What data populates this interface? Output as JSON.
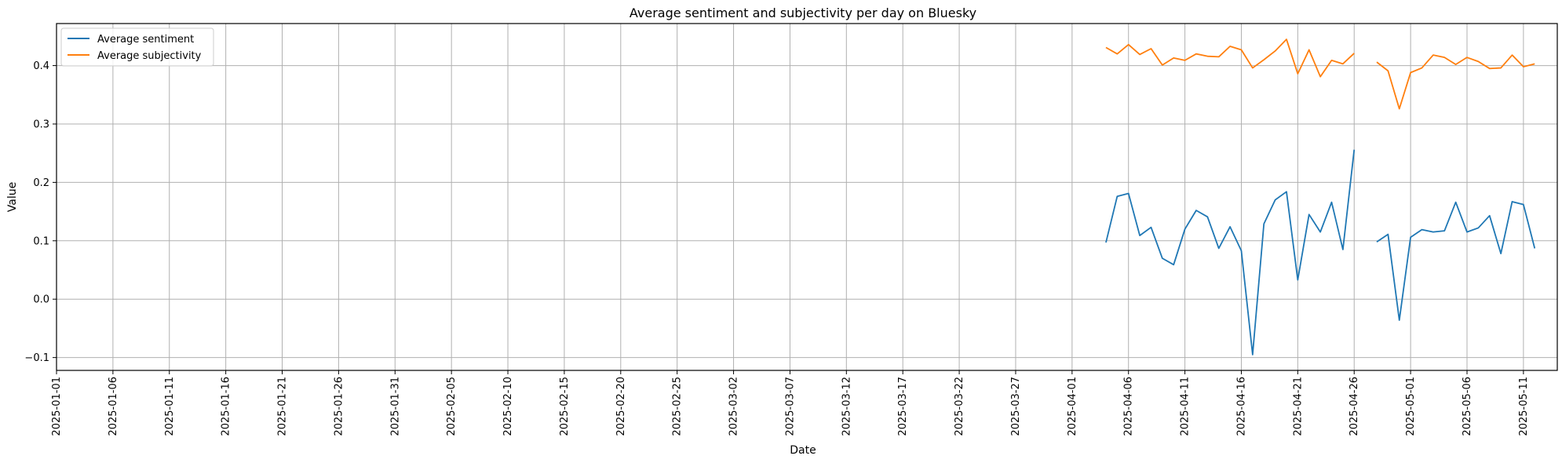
{
  "chart_data": {
    "type": "line",
    "title": "Average sentiment and subjectivity per day on Bluesky",
    "xlabel": "Date",
    "ylabel": "Value",
    "xlim": [
      "2025-01-01",
      "2025-05-14"
    ],
    "ylim": [
      -0.122,
      0.472
    ],
    "grid": true,
    "legend_position": "top-left",
    "x_ticks": [
      "2025-01-01",
      "2025-01-06",
      "2025-01-11",
      "2025-01-16",
      "2025-01-21",
      "2025-01-26",
      "2025-01-31",
      "2025-02-05",
      "2025-02-10",
      "2025-02-15",
      "2025-02-20",
      "2025-02-25",
      "2025-03-02",
      "2025-03-07",
      "2025-03-12",
      "2025-03-17",
      "2025-03-22",
      "2025-03-27",
      "2025-04-01",
      "2025-04-06",
      "2025-04-11",
      "2025-04-16",
      "2025-04-21",
      "2025-04-26",
      "2025-05-01",
      "2025-05-06",
      "2025-05-11"
    ],
    "y_ticks": [
      "−0.1",
      "0.0",
      "0.1",
      "0.2",
      "0.3",
      "0.4"
    ],
    "y_tick_values": [
      -0.1,
      0.0,
      0.1,
      0.2,
      0.3,
      0.4
    ],
    "series": [
      {
        "name": "Average sentiment",
        "color": "#1f77b4",
        "points": [
          [
            "2025-04-04",
            0.097
          ],
          [
            "2025-04-05",
            0.176
          ],
          [
            "2025-04-06",
            0.181
          ],
          [
            "2025-04-07",
            0.109
          ],
          [
            "2025-04-08",
            0.123
          ],
          [
            "2025-04-09",
            0.07
          ],
          [
            "2025-04-10",
            0.059
          ],
          [
            "2025-04-11",
            0.12
          ],
          [
            "2025-04-12",
            0.152
          ],
          [
            "2025-04-13",
            0.141
          ],
          [
            "2025-04-14",
            0.087
          ],
          [
            "2025-04-15",
            0.124
          ],
          [
            "2025-04-16",
            0.083
          ],
          [
            "2025-04-17",
            -0.095
          ],
          [
            "2025-04-18",
            0.129
          ],
          [
            "2025-04-19",
            0.17
          ],
          [
            "2025-04-20",
            0.184
          ],
          [
            "2025-04-21",
            0.033
          ],
          [
            "2025-04-22",
            0.145
          ],
          [
            "2025-04-23",
            0.115
          ],
          [
            "2025-04-24",
            0.166
          ],
          [
            "2025-04-25",
            0.085
          ],
          [
            "2025-04-26",
            0.256
          ],
          [
            "2025-04-28",
            0.098
          ],
          [
            "2025-04-29",
            0.111
          ],
          [
            "2025-04-30",
            -0.036
          ],
          [
            "2025-05-01",
            0.106
          ],
          [
            "2025-05-02",
            0.119
          ],
          [
            "2025-05-03",
            0.115
          ],
          [
            "2025-05-04",
            0.117
          ],
          [
            "2025-05-05",
            0.166
          ],
          [
            "2025-05-06",
            0.115
          ],
          [
            "2025-05-07",
            0.122
          ],
          [
            "2025-05-08",
            0.143
          ],
          [
            "2025-05-09",
            0.078
          ],
          [
            "2025-05-10",
            0.167
          ],
          [
            "2025-05-11",
            0.162
          ],
          [
            "2025-05-12",
            0.087
          ]
        ]
      },
      {
        "name": "Average subjectivity",
        "color": "#ff7f0e",
        "points": [
          [
            "2025-04-04",
            0.431
          ],
          [
            "2025-04-05",
            0.42
          ],
          [
            "2025-04-06",
            0.436
          ],
          [
            "2025-04-07",
            0.419
          ],
          [
            "2025-04-08",
            0.429
          ],
          [
            "2025-04-09",
            0.401
          ],
          [
            "2025-04-10",
            0.413
          ],
          [
            "2025-04-11",
            0.409
          ],
          [
            "2025-04-12",
            0.42
          ],
          [
            "2025-04-13",
            0.416
          ],
          [
            "2025-04-14",
            0.415
          ],
          [
            "2025-04-15",
            0.433
          ],
          [
            "2025-04-16",
            0.427
          ],
          [
            "2025-04-17",
            0.396
          ],
          [
            "2025-04-18",
            0.41
          ],
          [
            "2025-04-19",
            0.425
          ],
          [
            "2025-04-20",
            0.445
          ],
          [
            "2025-04-21",
            0.386
          ],
          [
            "2025-04-22",
            0.427
          ],
          [
            "2025-04-23",
            0.381
          ],
          [
            "2025-04-24",
            0.409
          ],
          [
            "2025-04-25",
            0.403
          ],
          [
            "2025-04-26",
            0.421
          ],
          [
            "2025-04-28",
            0.406
          ],
          [
            "2025-04-29",
            0.391
          ],
          [
            "2025-04-30",
            0.326
          ],
          [
            "2025-05-01",
            0.388
          ],
          [
            "2025-05-02",
            0.396
          ],
          [
            "2025-05-03",
            0.418
          ],
          [
            "2025-05-04",
            0.414
          ],
          [
            "2025-05-05",
            0.402
          ],
          [
            "2025-05-06",
            0.414
          ],
          [
            "2025-05-07",
            0.407
          ],
          [
            "2025-05-08",
            0.395
          ],
          [
            "2025-05-09",
            0.396
          ],
          [
            "2025-05-10",
            0.418
          ],
          [
            "2025-05-11",
            0.398
          ],
          [
            "2025-05-12",
            0.403
          ]
        ]
      }
    ]
  }
}
